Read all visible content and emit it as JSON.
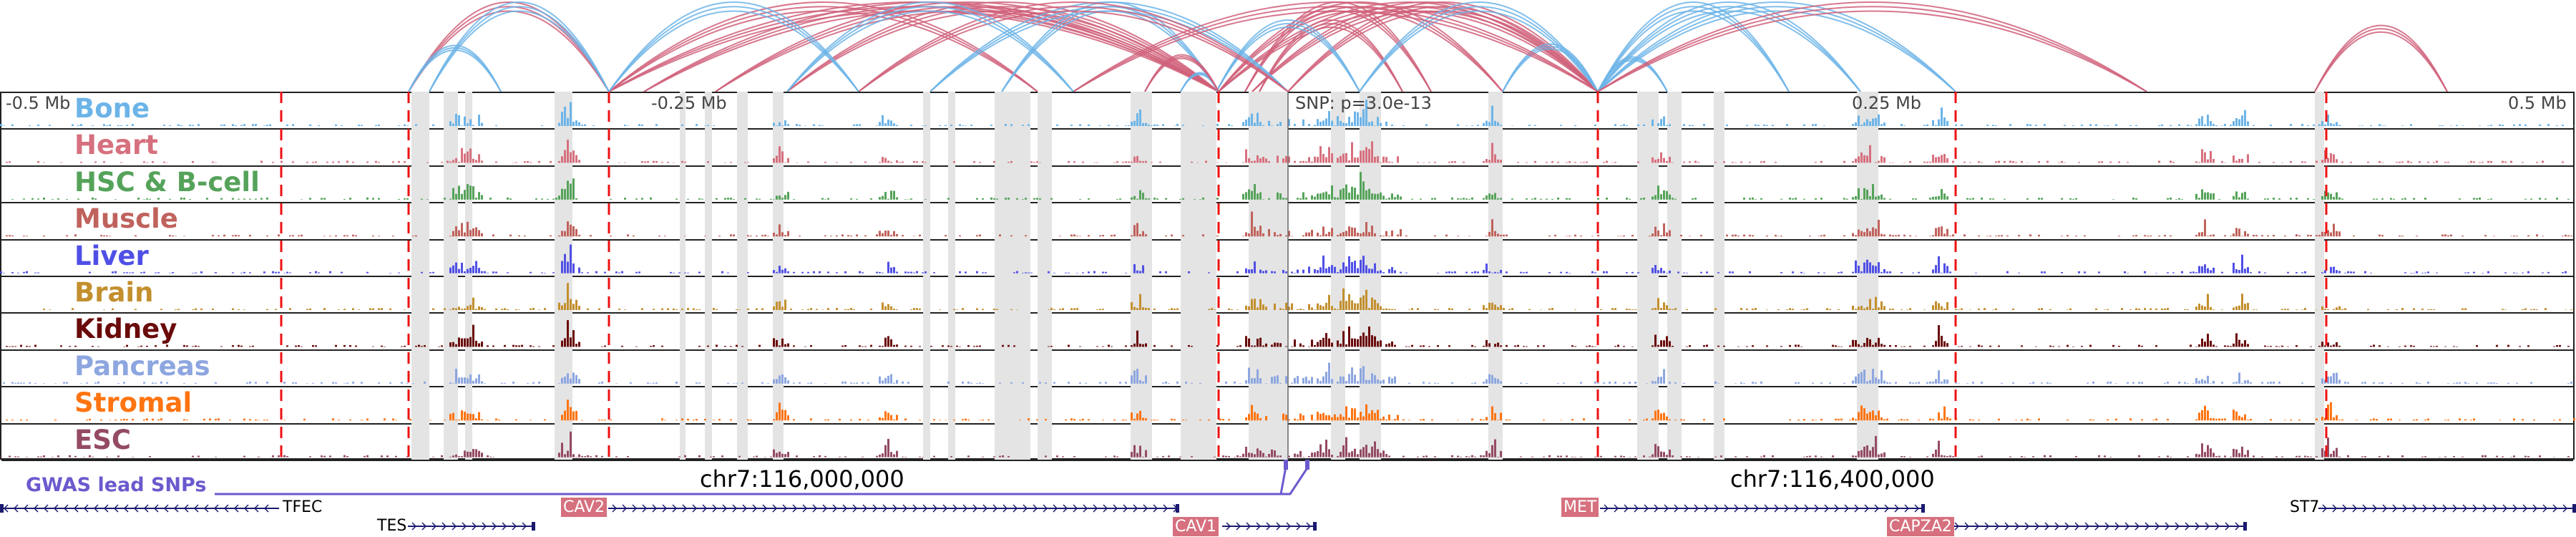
{
  "scale": {
    "left": "-0.5 Mb",
    "mid_left": "-0.25 Mb",
    "snp": "SNP: p=3.0e-13",
    "mid_right": "0.25 Mb",
    "right": "0.5 Mb"
  },
  "tracks": [
    {
      "label": "Bone",
      "color": "#6cb4e8"
    },
    {
      "label": "Heart",
      "color": "#d6707e"
    },
    {
      "label": "HSC & B-cell",
      "color": "#55a35a"
    },
    {
      "label": "Muscle",
      "color": "#c0625c"
    },
    {
      "label": "Liver",
      "color": "#4f4fe6"
    },
    {
      "label": "Brain",
      "color": "#c38f2e"
    },
    {
      "label": "Kidney",
      "color": "#6a0a0a"
    },
    {
      "label": "Pancreas",
      "color": "#8da6e0"
    },
    {
      "label": "Stromal",
      "color": "#ff7410"
    },
    {
      "label": "ESC",
      "color": "#944a64"
    }
  ],
  "coords": {
    "c1": "chr7:116,000,000",
    "c2": "chr7:116,400,000"
  },
  "gwas_label": "GWAS lead SNPs",
  "genes": {
    "tfec": "TFEC",
    "tes": "TES",
    "cav2": "CAV2",
    "cav1": "CAV1",
    "met": "MET",
    "capza2": "CAPZA2",
    "st7": "ST7"
  },
  "colors": {
    "arc_red": "#d0607a",
    "arc_blue": "#6cb4e8",
    "boundary": "#ee1111",
    "gene": "#1a1a70"
  }
}
